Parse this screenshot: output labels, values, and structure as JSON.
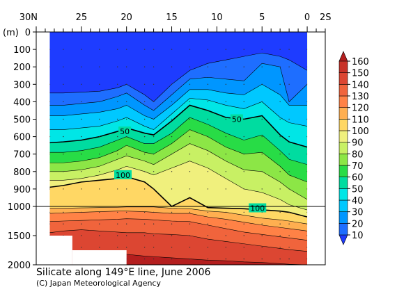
{
  "chart_data": {
    "type": "heatmap",
    "title": "Silicate along 149°E line, June 2006",
    "credit": "(C) Japan Meteorological Agency",
    "ylabel": "(m)",
    "x_ticks": [
      "30N",
      "25",
      "20",
      "15",
      "10",
      "5",
      "0",
      "2S"
    ],
    "y_ticks_upper": [
      "0",
      "100",
      "200",
      "300",
      "400",
      "500",
      "600",
      "700",
      "800",
      "900",
      "1000"
    ],
    "y_ticks_lower": [
      "1500",
      "2000"
    ],
    "xlim": [
      30,
      -2
    ],
    "ylim_upper": [
      0,
      1000
    ],
    "ylim_lower": [
      1000,
      2000
    ],
    "colorbar": {
      "levels": [
        10,
        20,
        30,
        40,
        50,
        60,
        70,
        80,
        90,
        100,
        110,
        120,
        130,
        140,
        150,
        160
      ],
      "colors": [
        "#1e3cff",
        "#1e6eff",
        "#0096ff",
        "#00c8ff",
        "#00e6e6",
        "#00dca0",
        "#28dc46",
        "#8ce646",
        "#c8f064",
        "#f0f07d",
        "#ffd764",
        "#ffaf50",
        "#ff8246",
        "#f0643c",
        "#dc4632",
        "#c83228",
        "#b41e1e"
      ]
    },
    "contour_labels": [
      {
        "text": "50",
        "lat": 20.2,
        "depth": 570
      },
      {
        "text": "50",
        "lat": 7.8,
        "depth": 500
      },
      {
        "text": "100",
        "lat": 20.4,
        "depth": 820
      },
      {
        "text": "100",
        "lat": 5.5,
        "depth": 1030
      }
    ],
    "section_data": {
      "lats": [
        28.5,
        27,
        25,
        23,
        21,
        20,
        18,
        17,
        15,
        13,
        11,
        9,
        7,
        5,
        3,
        2,
        0
      ],
      "levels": [
        10,
        20,
        30,
        40,
        50,
        60,
        70,
        80,
        90,
        100,
        110,
        120,
        130,
        140,
        150
      ],
      "depths": [
        [
          350,
          350,
          345,
          340,
          320,
          300,
          360,
          400,
          300,
          220,
          180,
          160,
          140,
          120,
          140,
          160,
          220
        ],
        [
          420,
          420,
          410,
          400,
          370,
          350,
          420,
          450,
          360,
          270,
          260,
          270,
          280,
          180,
          200,
          400,
          300
        ],
        [
          480,
          480,
          470,
          460,
          440,
          420,
          480,
          500,
          420,
          330,
          330,
          350,
          360,
          300,
          360,
          420,
          420
        ],
        [
          560,
          560,
          550,
          540,
          510,
          490,
          540,
          560,
          470,
          380,
          390,
          420,
          440,
          400,
          490,
          520,
          540
        ],
        [
          635,
          630,
          620,
          600,
          570,
          550,
          580,
          590,
          510,
          420,
          450,
          490,
          500,
          480,
          590,
          630,
          660
        ],
        [
          690,
          690,
          680,
          660,
          620,
          600,
          640,
          640,
          580,
          490,
          530,
          580,
          620,
          590,
          680,
          730,
          760
        ],
        [
          750,
          750,
          740,
          720,
          680,
          650,
          690,
          700,
          640,
          560,
          600,
          660,
          700,
          690,
          770,
          820,
          860
        ],
        [
          800,
          800,
          790,
          770,
          730,
          710,
          740,
          760,
          700,
          640,
          680,
          740,
          790,
          800,
          860,
          900,
          960
        ],
        [
          850,
          850,
          840,
          820,
          790,
          770,
          800,
          820,
          780,
          740,
          780,
          840,
          900,
          920,
          960,
          990,
          1060
        ],
        [
          890,
          880,
          860,
          850,
          840,
          830,
          860,
          900,
          1000,
          950,
          1020,
          1030,
          1040,
          1060,
          1080,
          1100,
          1180
        ],
        [
          1030,
          1030,
          1025,
          1020,
          1015,
          1010,
          1010,
          1010,
          1030,
          1040,
          1080,
          1100,
          1150,
          1200,
          1230,
          1250,
          1300
        ],
        [
          1120,
          1110,
          1100,
          1090,
          1080,
          1080,
          1090,
          1100,
          1120,
          1120,
          1180,
          1220,
          1270,
          1320,
          1360,
          1380,
          1420
        ],
        [
          1260,
          1250,
          1240,
          1230,
          1220,
          1210,
          1220,
          1230,
          1250,
          1260,
          1320,
          1380,
          1440,
          1480,
          1520,
          1540,
          1580
        ],
        [
          1450,
          1420,
          1400,
          1420,
          1440,
          1450,
          1450,
          1470,
          1480,
          1500,
          1560,
          1600,
          1640,
          1680,
          1720,
          1740,
          1770
        ],
        [
          1780,
          1770,
          1760,
          1780,
          1800,
          1820,
          1850,
          1860,
          1880,
          1900,
          1920,
          1930,
          1950,
          1960,
          1980,
          1990,
          2000
        ]
      ]
    },
    "blanks": [
      {
        "lat_from": 29,
        "lat_to": 26,
        "depth_from": 1500,
        "depth_to": 2000
      },
      {
        "lat_from": 26,
        "lat_to": 20,
        "depth_from": 1750,
        "depth_to": 2000
      }
    ]
  }
}
